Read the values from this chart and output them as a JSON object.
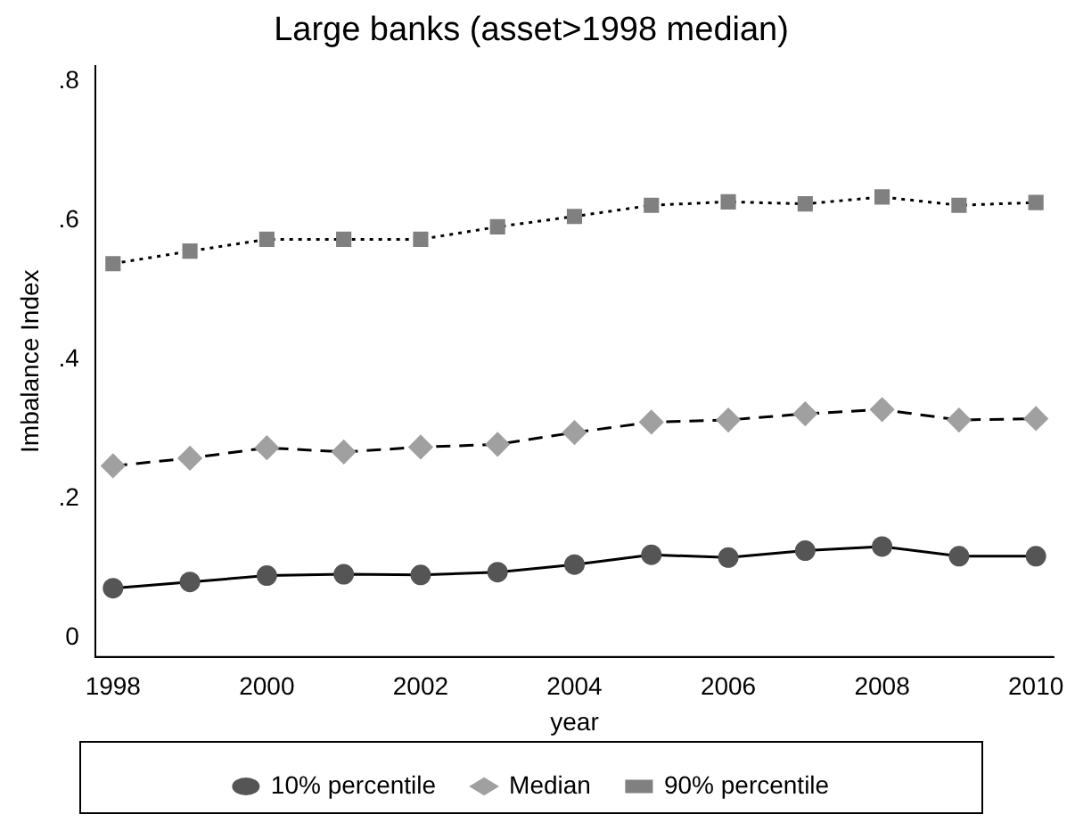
{
  "chart_data": {
    "type": "line",
    "title": "Large banks (asset>1998 median)",
    "xlabel": "year",
    "ylabel": "Imbalance Index",
    "x": [
      1998,
      1999,
      2000,
      2001,
      2002,
      2003,
      2004,
      2005,
      2006,
      2007,
      2008,
      2009,
      2010
    ],
    "series": [
      {
        "name": "10% percentile",
        "color": "#555555",
        "marker": "circle",
        "line_style": "solid",
        "values": [
          0.071,
          0.08,
          0.089,
          0.091,
          0.09,
          0.094,
          0.105,
          0.119,
          0.115,
          0.125,
          0.131,
          0.117,
          0.117
        ]
      },
      {
        "name": "Median",
        "color": "#a0a0a0",
        "marker": "diamond",
        "line_style": "dashed",
        "values": [
          0.247,
          0.258,
          0.273,
          0.267,
          0.274,
          0.278,
          0.295,
          0.31,
          0.313,
          0.322,
          0.328,
          0.313,
          0.315
        ]
      },
      {
        "name": "90% percentile",
        "color": "#808080",
        "marker": "square",
        "line_style": "dotted",
        "values": [
          0.538,
          0.556,
          0.573,
          0.573,
          0.573,
          0.591,
          0.606,
          0.622,
          0.627,
          0.624,
          0.634,
          0.622,
          0.626
        ]
      }
    ],
    "xlim": [
      1997.77,
      2010.23
    ],
    "xticks": [
      1998,
      2000,
      2002,
      2004,
      2006,
      2008,
      2010
    ],
    "ylim": [
      -0.028,
      0.823
    ],
    "yticks": [
      {
        "value": 0,
        "label": "0"
      },
      {
        "value": 0.2,
        "label": ".2"
      },
      {
        "value": 0.4,
        "label": ".4"
      },
      {
        "value": 0.6,
        "label": ".6"
      },
      {
        "value": 0.8,
        "label": ".8"
      }
    ],
    "grid": false,
    "legend": "bottom"
  }
}
